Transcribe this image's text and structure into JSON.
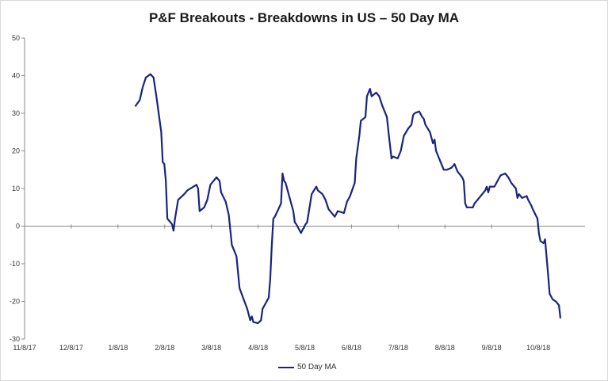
{
  "chart_data": {
    "type": "line",
    "title": "P&F Breakouts - Breakdowns in US – 50 Day MA",
    "xlabel": "",
    "ylabel": "",
    "ylim": [
      -30,
      50
    ],
    "yticks": [
      50,
      40,
      30,
      20,
      10,
      0,
      -10,
      -20,
      -30
    ],
    "xticks": [
      "11/8/17",
      "12/8/17",
      "1/8/18",
      "2/8/18",
      "3/8/18",
      "4/8/18",
      "5/8/18",
      "6/8/18",
      "7/8/18",
      "8/8/18",
      "9/8/18",
      "10/8/18"
    ],
    "xlim": [
      "2017-11-08",
      "2018-11-08"
    ],
    "grid": false,
    "legend_position": "bottom",
    "color": "#1a237e",
    "series": [
      {
        "name": "50 Day MA",
        "points": [
          [
            "2018-01-19",
            31.8
          ],
          [
            "2018-01-22",
            33.5
          ],
          [
            "2018-01-24",
            37.0
          ],
          [
            "2018-01-26",
            39.5
          ],
          [
            "2018-01-29",
            40.4
          ],
          [
            "2018-01-31",
            39.5
          ],
          [
            "2018-02-02",
            34.0
          ],
          [
            "2018-02-05",
            25.0
          ],
          [
            "2018-02-06",
            17.0
          ],
          [
            "2018-02-07",
            16.5
          ],
          [
            "2018-02-08",
            12.0
          ],
          [
            "2018-02-09",
            2.0
          ],
          [
            "2018-02-12",
            0.5
          ],
          [
            "2018-02-13",
            -1.2
          ],
          [
            "2018-02-14",
            2.0
          ],
          [
            "2018-02-16",
            7.0
          ],
          [
            "2018-02-20",
            8.5
          ],
          [
            "2018-02-22",
            9.5
          ],
          [
            "2018-02-26",
            10.5
          ],
          [
            "2018-02-28",
            11.0
          ],
          [
            "2018-03-01",
            10.0
          ],
          [
            "2018-03-02",
            4.0
          ],
          [
            "2018-03-05",
            5.0
          ],
          [
            "2018-03-07",
            7.0
          ],
          [
            "2018-03-09",
            11.0
          ],
          [
            "2018-03-13",
            13.0
          ],
          [
            "2018-03-15",
            12.0
          ],
          [
            "2018-03-16",
            9.0
          ],
          [
            "2018-03-19",
            6.5
          ],
          [
            "2018-03-21",
            3.0
          ],
          [
            "2018-03-23",
            -5.0
          ],
          [
            "2018-03-26",
            -8.0
          ],
          [
            "2018-03-28",
            -16.5
          ],
          [
            "2018-04-02",
            -22.0
          ],
          [
            "2018-04-04",
            -25.0
          ],
          [
            "2018-04-05",
            -24.0
          ],
          [
            "2018-04-06",
            -25.5
          ],
          [
            "2018-04-09",
            -25.8
          ],
          [
            "2018-04-11",
            -25.0
          ],
          [
            "2018-04-12",
            -22.0
          ],
          [
            "2018-04-16",
            -19.0
          ],
          [
            "2018-04-17",
            -14.0
          ],
          [
            "2018-04-18",
            -5.0
          ],
          [
            "2018-04-19",
            2.0
          ],
          [
            "2018-04-20",
            2.5
          ],
          [
            "2018-04-24",
            6.0
          ],
          [
            "2018-04-25",
            14.0
          ],
          [
            "2018-04-26",
            12.0
          ],
          [
            "2018-04-27",
            11.5
          ],
          [
            "2018-04-30",
            7.0
          ],
          [
            "2018-05-02",
            4.0
          ],
          [
            "2018-05-03",
            1.0
          ],
          [
            "2018-05-04",
            0.5
          ],
          [
            "2018-05-07",
            -1.8
          ],
          [
            "2018-05-08",
            -1.0
          ],
          [
            "2018-05-10",
            0.5
          ],
          [
            "2018-05-11",
            1.0
          ],
          [
            "2018-05-14",
            8.5
          ],
          [
            "2018-05-17",
            10.5
          ],
          [
            "2018-05-18",
            9.5
          ],
          [
            "2018-05-21",
            8.5
          ],
          [
            "2018-05-23",
            7.0
          ],
          [
            "2018-05-25",
            4.5
          ],
          [
            "2018-05-29",
            2.5
          ],
          [
            "2018-05-31",
            4.0
          ],
          [
            "2018-06-04",
            3.5
          ],
          [
            "2018-06-06",
            6.5
          ],
          [
            "2018-06-08",
            8.0
          ],
          [
            "2018-06-11",
            11.5
          ],
          [
            "2018-06-12",
            18.0
          ],
          [
            "2018-06-14",
            24.0
          ],
          [
            "2018-06-15",
            28.0
          ],
          [
            "2018-06-18",
            29.0
          ],
          [
            "2018-06-19",
            34.5
          ],
          [
            "2018-06-21",
            36.5
          ],
          [
            "2018-06-22",
            34.5
          ],
          [
            "2018-06-25",
            35.5
          ],
          [
            "2018-06-27",
            34.5
          ],
          [
            "2018-06-29",
            32.0
          ],
          [
            "2018-07-02",
            29.0
          ],
          [
            "2018-07-03",
            25.0
          ],
          [
            "2018-07-05",
            18.0
          ],
          [
            "2018-07-06",
            18.5
          ],
          [
            "2018-07-09",
            18.0
          ],
          [
            "2018-07-11",
            20.0
          ],
          [
            "2018-07-13",
            24.0
          ],
          [
            "2018-07-16",
            26.0
          ],
          [
            "2018-07-18",
            27.0
          ],
          [
            "2018-07-19",
            29.5
          ],
          [
            "2018-07-20",
            30.0
          ],
          [
            "2018-07-23",
            30.5
          ],
          [
            "2018-07-25",
            29.0
          ],
          [
            "2018-07-26",
            28.5
          ],
          [
            "2018-07-27",
            27.0
          ],
          [
            "2018-07-30",
            25.0
          ],
          [
            "2018-08-01",
            22.0
          ],
          [
            "2018-08-02",
            23.0
          ],
          [
            "2018-08-03",
            20.0
          ],
          [
            "2018-08-06",
            17.0
          ],
          [
            "2018-08-08",
            15.0
          ],
          [
            "2018-08-10",
            15.0
          ],
          [
            "2018-08-13",
            15.5
          ],
          [
            "2018-08-15",
            16.5
          ],
          [
            "2018-08-17",
            14.5
          ],
          [
            "2018-08-20",
            13.0
          ],
          [
            "2018-08-21",
            12.0
          ],
          [
            "2018-08-22",
            6.0
          ],
          [
            "2018-08-23",
            5.0
          ],
          [
            "2018-08-27",
            5.0
          ],
          [
            "2018-08-28",
            6.0
          ],
          [
            "2018-08-30",
            7.0
          ],
          [
            "2018-09-04",
            9.5
          ],
          [
            "2018-09-05",
            10.5
          ],
          [
            "2018-09-06",
            9.0
          ],
          [
            "2018-09-07",
            10.5
          ],
          [
            "2018-09-10",
            10.5
          ],
          [
            "2018-09-12",
            12.0
          ],
          [
            "2018-09-14",
            13.5
          ],
          [
            "2018-09-17",
            14.0
          ],
          [
            "2018-09-19",
            13.0
          ],
          [
            "2018-09-21",
            11.5
          ],
          [
            "2018-09-24",
            10.0
          ],
          [
            "2018-09-25",
            7.5
          ],
          [
            "2018-09-26",
            8.5
          ],
          [
            "2018-09-28",
            7.5
          ],
          [
            "2018-10-01",
            8.0
          ],
          [
            "2018-10-02",
            7.0
          ],
          [
            "2018-10-04",
            5.5
          ],
          [
            "2018-10-05",
            4.5
          ],
          [
            "2018-10-08",
            2.0
          ],
          [
            "2018-10-09",
            -2.0
          ],
          [
            "2018-10-10",
            -4.0
          ],
          [
            "2018-10-12",
            -4.5
          ],
          [
            "2018-10-13",
            -3.5
          ],
          [
            "2018-10-15",
            -13.0
          ],
          [
            "2018-10-16",
            -18.0
          ],
          [
            "2018-10-18",
            -19.5
          ],
          [
            "2018-10-20",
            -20.0
          ],
          [
            "2018-10-22",
            -21.0
          ],
          [
            "2018-10-23",
            -24.5
          ]
        ]
      }
    ]
  }
}
